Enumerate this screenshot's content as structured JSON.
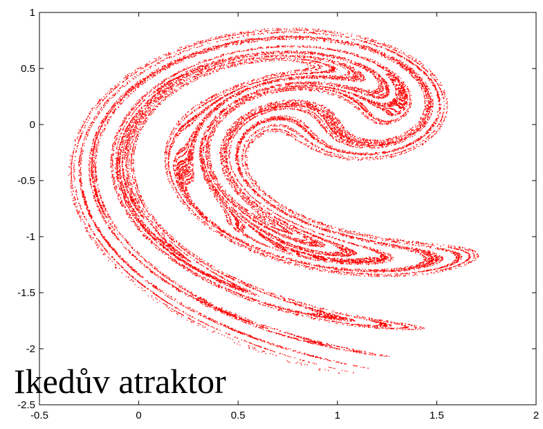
{
  "chart_data": {
    "type": "scatter",
    "title": "",
    "xlabel": "",
    "ylabel": "",
    "xlim": [
      -0.5,
      2
    ],
    "ylim": [
      -2.5,
      1
    ],
    "grid": false,
    "legend": "none",
    "x_ticks": [
      "-0.5",
      "0",
      "0.5",
      "1",
      "1.5",
      "2"
    ],
    "y_ticks": [
      "1",
      "0.5",
      "0",
      "-0.5",
      "-1",
      "-1.5",
      "-2",
      "-2.5"
    ],
    "overlay_text": "Ikedův atraktor",
    "point_color": "#ff0000",
    "series": [
      {
        "generator": "ikeda",
        "parameters": {
          "u": 0.9,
          "start_x": 0.1,
          "start_y": 0.1,
          "iterations": 30000,
          "discard": 100
        }
      }
    ]
  }
}
